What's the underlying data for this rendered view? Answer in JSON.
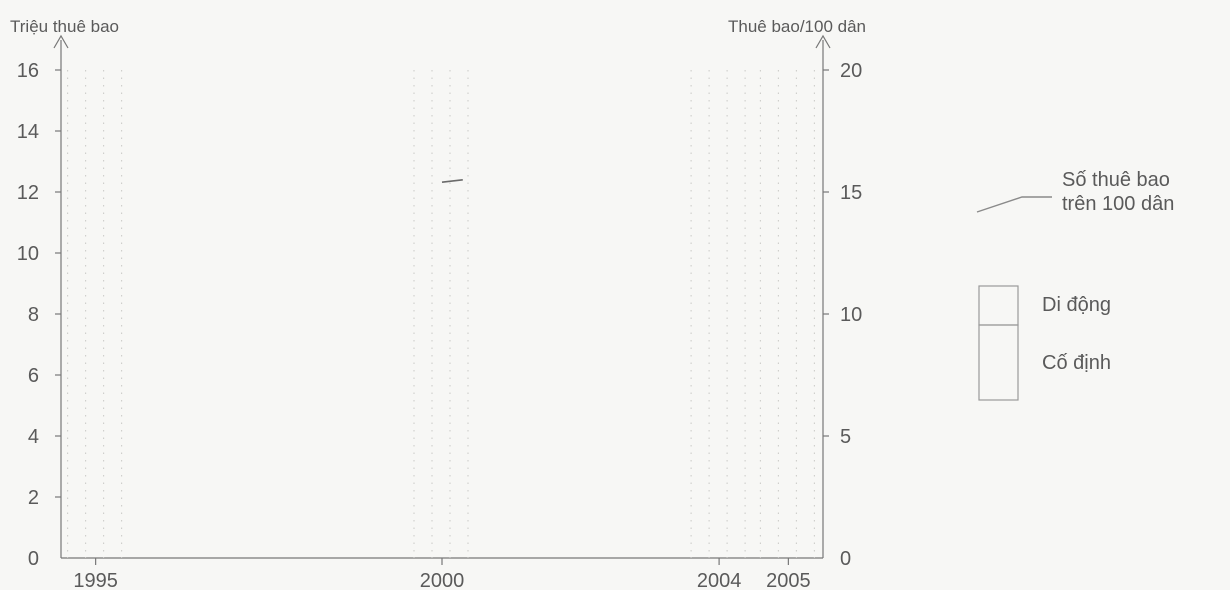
{
  "chart_data": {
    "type": "bar",
    "left_axis_title": "Triệu thuê bao",
    "right_axis_title": "Thuê bao/100 dân",
    "left_ylim": [
      0,
      16
    ],
    "left_ticks": [
      "0",
      "2",
      "4",
      "6",
      "8",
      "10",
      "12",
      "14",
      "16"
    ],
    "right_ylim": [
      0,
      20
    ],
    "right_ticks": [
      "0",
      "5",
      "10",
      "15",
      "20"
    ],
    "categories": [
      "1995",
      "2000",
      "2004",
      "2005"
    ],
    "category_years": [
      1995,
      2000,
      2004,
      2005
    ],
    "x_range": [
      1994.5,
      2005.5
    ],
    "stacked_bar_series": [
      {
        "name": "Cố định",
        "values": [
          0.0,
          0.0,
          0.0,
          0.0
        ]
      },
      {
        "name": "Di động",
        "values": [
          0.0,
          0.0,
          0.0,
          0.0
        ]
      }
    ],
    "line_series": {
      "name": "Số thuê bao trên 100 dân",
      "visible_fragment": {
        "x": [
          2000,
          2000.3
        ],
        "y": [
          15.4,
          15.5
        ]
      }
    },
    "legend": {
      "line_label_1": "Số thuê bao",
      "line_label_2": "trên 100 dân",
      "swatches": [
        "Di động",
        "Cố định"
      ]
    },
    "colors": {
      "axis": "#777777",
      "grid": "#c9c9c6",
      "background": "#f7f7f5"
    }
  }
}
